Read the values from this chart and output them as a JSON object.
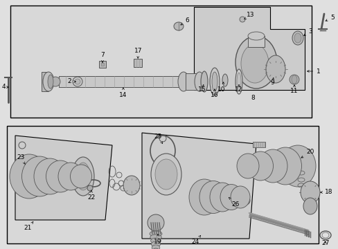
{
  "fig_width": 4.89,
  "fig_height": 3.6,
  "dpi": 100,
  "bg": "#e0e0e0",
  "panel_bg": "#d8d8d8",
  "white": "#ffffff",
  "black": "#000000",
  "dark": "#333333",
  "mid": "#888888",
  "light": "#bbbbbb",
  "vlight": "#d0d0d0"
}
